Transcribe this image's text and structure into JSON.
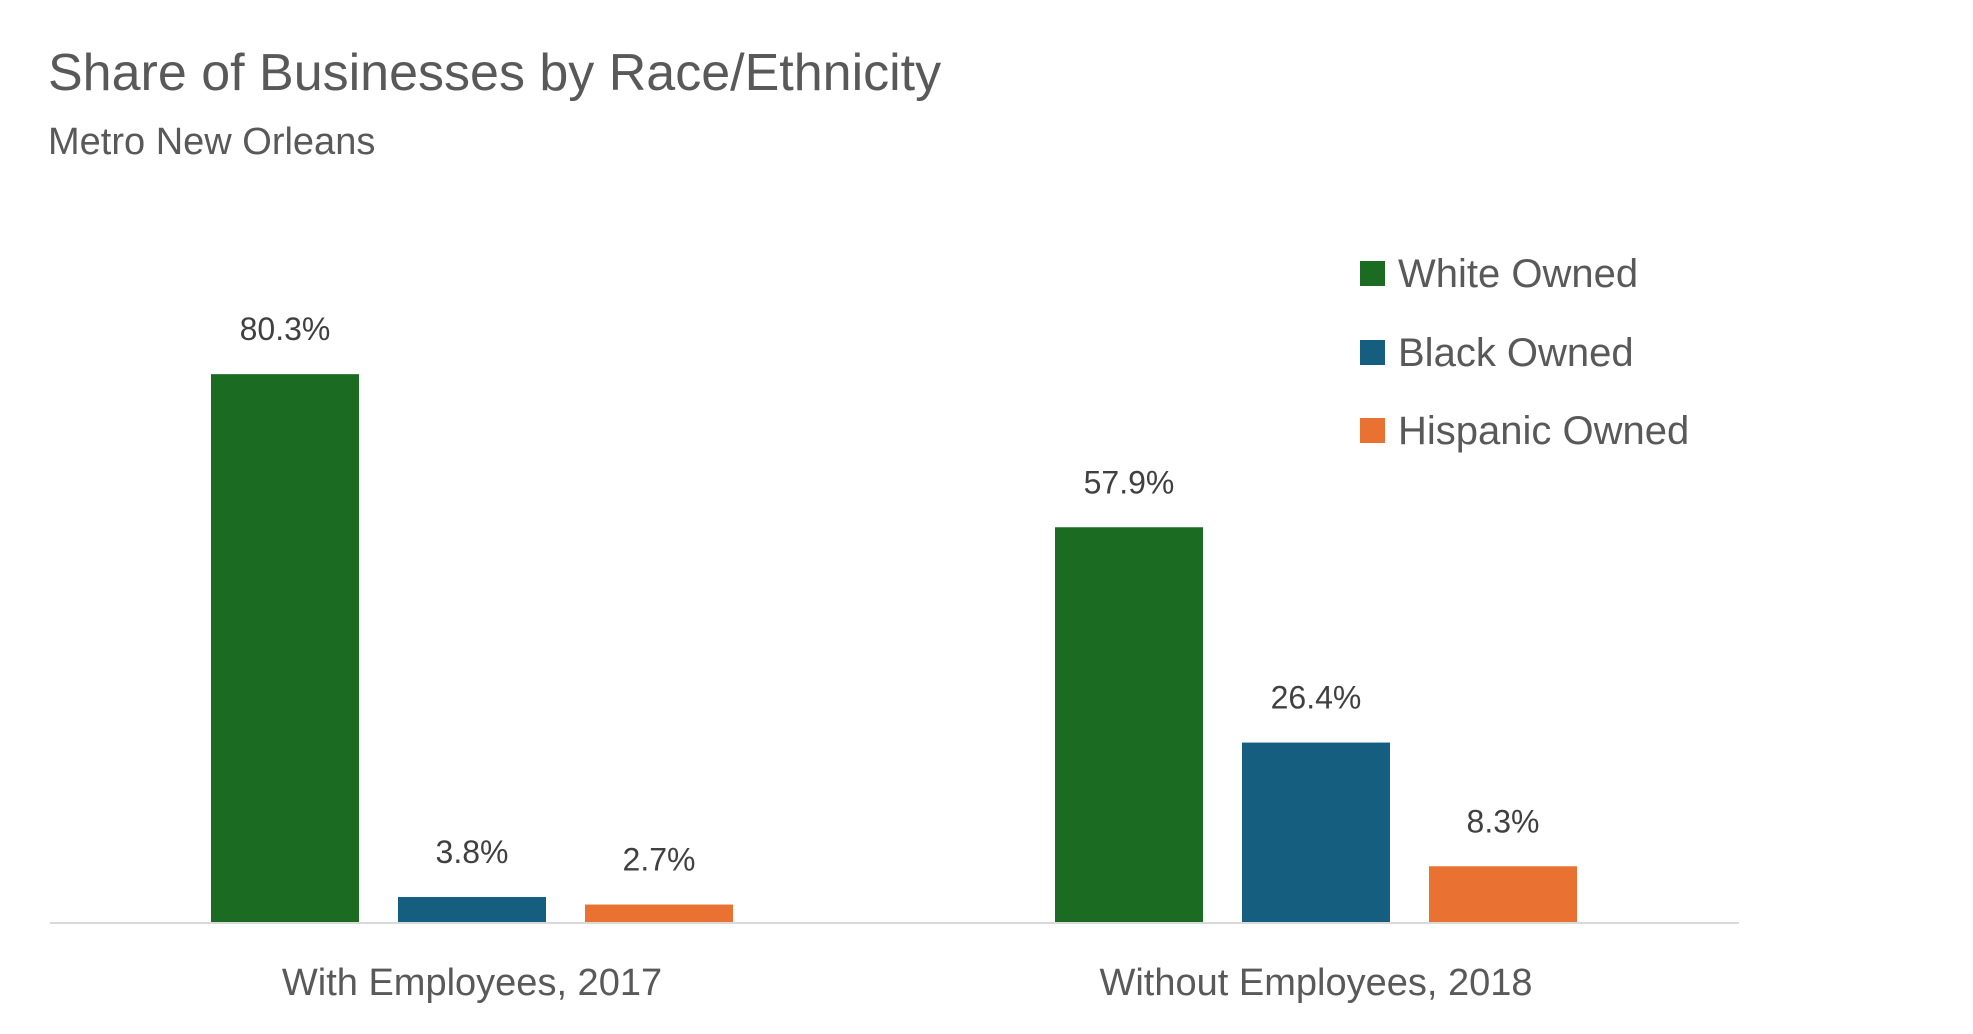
{
  "chart_data": {
    "type": "bar",
    "title": "Share of Businesses by Race/Ethnicity",
    "subtitle": "Metro New Orleans",
    "categories": [
      "With Employees, 2017",
      "Without Employees, 2018"
    ],
    "series": [
      {
        "name": "White Owned",
        "values": [
          80.3,
          57.9
        ],
        "labels": [
          "80.3%",
          "57.9%"
        ],
        "color": "#1b6b22"
      },
      {
        "name": "Black Owned",
        "values": [
          3.8,
          26.4
        ],
        "labels": [
          "3.8%",
          "26.4%"
        ],
        "color": "#155e80"
      },
      {
        "name": "Hispanic Owned",
        "values": [
          2.7,
          8.3
        ],
        "labels": [
          "2.7%",
          "8.3%"
        ],
        "color": "#e97132"
      }
    ],
    "unit": "%",
    "ylim": [
      0,
      100
    ],
    "grid": false,
    "legend_position": "top-right",
    "text_color": "#595959",
    "axis_color": "#d9d9d9"
  }
}
